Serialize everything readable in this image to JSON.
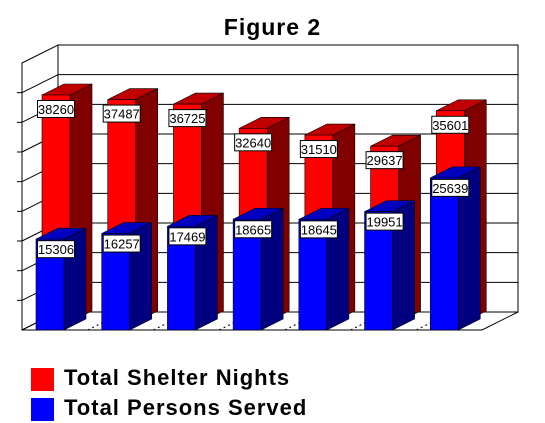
{
  "chart_data": {
    "type": "bar",
    "title": "Figure 2",
    "categories": [
      "",
      "",
      "",
      "",
      "",
      "",
      ""
    ],
    "series": [
      {
        "name": "Total Shelter Nights",
        "color": "#ff0000",
        "side_color": "#800000",
        "values": [
          38260,
          37487,
          36725,
          32640,
          31510,
          29637,
          35601
        ],
        "labels": [
          "38260",
          "37487",
          "36725",
          "32640",
          "31510",
          "29637",
          "35601"
        ]
      },
      {
        "name": "Total Persons Served",
        "color": "#0000ff",
        "side_color": "#000080",
        "values": [
          15306,
          16257,
          17469,
          18665,
          18645,
          19951,
          25639
        ],
        "labels": [
          "15306",
          "16257",
          "17469",
          "18665",
          "18645",
          "19951",
          "25639"
        ]
      }
    ],
    "ylim": [
      0,
      45000
    ],
    "grid": true,
    "view": "3d",
    "legend_position": "bottom-left"
  }
}
